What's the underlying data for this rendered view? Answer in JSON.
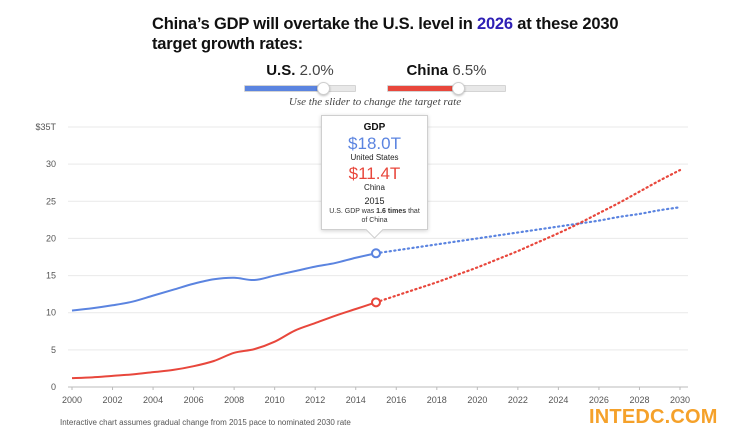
{
  "headline": {
    "before": "China’s GDP will overtake the U.S. level in ",
    "year": "2026",
    "after": " at these 2030 target growth rates:"
  },
  "sliders": {
    "us": {
      "name": "U.S.",
      "rate": "2.0%",
      "color": "#5b84e0",
      "value_pct": 2.0
    },
    "china": {
      "name": "China",
      "rate": "6.5%",
      "color": "#e8473c",
      "value_pct": 6.5
    },
    "hint": "Use the slider to change the target rate"
  },
  "tooltip": {
    "title": "GDP",
    "us_value": "$18.0T",
    "us_label": "United States",
    "china_value": "$11.4T",
    "china_label": "China",
    "year": "2015",
    "note_before": "U.S. GDP was ",
    "note_bold": "1.6 times",
    "note_after": " that of China"
  },
  "footnote": "Interactive chart assumes gradual change from 2015 pace to nominated 2030 rate",
  "watermark": "INTEDC.COM",
  "chart_data": {
    "type": "line",
    "title": "China’s GDP will overtake the U.S. level in 2026 at these 2030 target growth rates:",
    "xlabel": "",
    "ylabel": "",
    "xlim": [
      2000,
      2030
    ],
    "ylim": [
      0,
      35
    ],
    "x_ticks": [
      2000,
      2002,
      2004,
      2006,
      2008,
      2010,
      2012,
      2014,
      2016,
      2018,
      2020,
      2022,
      2024,
      2026,
      2028,
      2030
    ],
    "y_ticks": [
      0,
      5,
      10,
      15,
      20,
      25,
      30,
      35
    ],
    "y_tick_labels": [
      "0",
      "5",
      "10",
      "15",
      "20",
      "25",
      "30",
      "$35T"
    ],
    "grid": "horizontal",
    "highlight_year": 2015,
    "series": [
      {
        "name": "U.S.",
        "color": "#5b84e0",
        "historical": {
          "x": [
            2000,
            2001,
            2002,
            2003,
            2004,
            2005,
            2006,
            2007,
            2008,
            2009,
            2010,
            2011,
            2012,
            2013,
            2014,
            2015
          ],
          "y": [
            10.3,
            10.6,
            11.0,
            11.5,
            12.3,
            13.1,
            13.9,
            14.5,
            14.7,
            14.4,
            15.0,
            15.6,
            16.2,
            16.7,
            17.4,
            18.0
          ]
        },
        "projection": {
          "x": [
            2015,
            2016,
            2017,
            2018,
            2019,
            2020,
            2021,
            2022,
            2023,
            2024,
            2025,
            2026,
            2027,
            2028,
            2029,
            2030
          ],
          "y": [
            18.0,
            18.4,
            18.8,
            19.2,
            19.6,
            20.0,
            20.4,
            20.8,
            21.2,
            21.6,
            22.0,
            22.4,
            22.9,
            23.3,
            23.8,
            24.2
          ]
        }
      },
      {
        "name": "China",
        "color": "#e8473c",
        "historical": {
          "x": [
            2000,
            2001,
            2002,
            2003,
            2004,
            2005,
            2006,
            2007,
            2008,
            2009,
            2010,
            2011,
            2012,
            2013,
            2014,
            2015
          ],
          "y": [
            1.2,
            1.3,
            1.5,
            1.7,
            2.0,
            2.3,
            2.8,
            3.5,
            4.6,
            5.1,
            6.1,
            7.6,
            8.6,
            9.6,
            10.5,
            11.4
          ]
        },
        "projection": {
          "x": [
            2015,
            2016,
            2017,
            2018,
            2019,
            2020,
            2021,
            2022,
            2023,
            2024,
            2025,
            2026,
            2027,
            2028,
            2029,
            2030
          ],
          "y": [
            11.4,
            12.3,
            13.2,
            14.1,
            15.1,
            16.1,
            17.2,
            18.3,
            19.5,
            20.7,
            22.0,
            23.4,
            24.8,
            26.3,
            27.8,
            29.2
          ]
        }
      }
    ]
  }
}
